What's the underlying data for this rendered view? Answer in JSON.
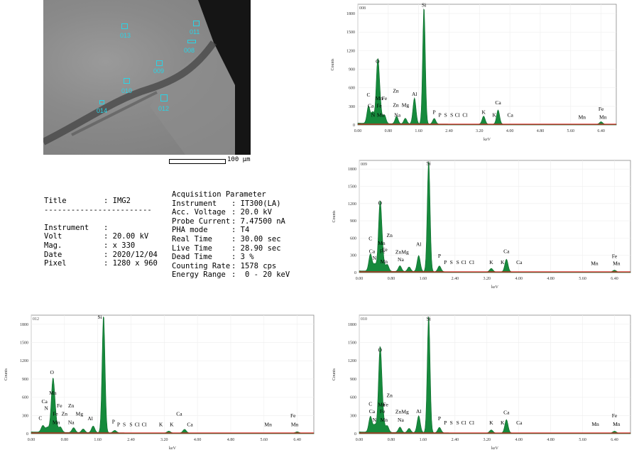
{
  "scale_label": "100 μm",
  "rois": [
    {
      "label": "011"
    },
    {
      "label": "008"
    },
    {
      "label": "013"
    },
    {
      "label": "009"
    },
    {
      "label": "010"
    },
    {
      "label": "012"
    },
    {
      "label": "014"
    }
  ],
  "info": {
    "title_key": "Title",
    "title_val": ": IMG2",
    "divider": "------------------------",
    "instrument_key": "Instrument",
    "instrument_val": ":",
    "volt_key": "Volt",
    "volt_val": ": 20.00 kV",
    "mag_key": "Mag.",
    "mag_val": ": x 330",
    "date_key": "Date",
    "date_val": ": 2020/12/04",
    "pixel_key": "Pixel",
    "pixel_val": ": 1280 x 960"
  },
  "acq": {
    "heading": "Acquisition Parameter",
    "rows": [
      {
        "k": "Instrument",
        "v": ": IT300(LA)"
      },
      {
        "k": "Acc. Voltage",
        "v": ": 20.0 kV"
      },
      {
        "k": "Probe Current",
        "v": ": 7.47500 nA"
      },
      {
        "k": "PHA mode",
        "v": ": T4"
      },
      {
        "k": "Real Time",
        "v": ": 30.00 sec"
      },
      {
        "k": "Live Time",
        "v": ": 28.90 sec"
      },
      {
        "k": "Dead Time",
        "v": ": 3 %"
      },
      {
        "k": "Counting Rate",
        "v": ": 1578 cps"
      },
      {
        "k": "Energy Range",
        "v": ":  0 - 20 keV"
      }
    ]
  },
  "chart_data": [
    {
      "type": "line",
      "id": "008",
      "xlabel": "keV",
      "ylabel": "Counts",
      "xlim": [
        0,
        6.8
      ],
      "ylim": [
        0,
        1950
      ],
      "xticks": [
        "0.00",
        "0.80",
        "1.60",
        "2.40",
        "3.20",
        "4.00",
        "4.80",
        "5.60",
        "6.40"
      ],
      "yticks": [
        "0",
        "300",
        "600",
        "900",
        "1200",
        "1500",
        "1800"
      ],
      "peaks": [
        {
          "x": 0.28,
          "y": 280
        },
        {
          "x": 0.39,
          "y": 180
        },
        {
          "x": 0.52,
          "y": 950
        },
        {
          "x": 0.58,
          "y": 300
        },
        {
          "x": 0.7,
          "y": 140
        },
        {
          "x": 1.02,
          "y": 120
        },
        {
          "x": 1.25,
          "y": 90
        },
        {
          "x": 1.49,
          "y": 420
        },
        {
          "x": 1.74,
          "y": 1900
        },
        {
          "x": 2.01,
          "y": 90
        },
        {
          "x": 3.31,
          "y": 130
        },
        {
          "x": 3.69,
          "y": 230
        },
        {
          "x": 6.4,
          "y": 40
        }
      ],
      "labels": [
        {
          "t": "Si",
          "x": 1.74,
          "y": 1910
        },
        {
          "t": "O",
          "x": 0.52,
          "y": 1000
        },
        {
          "t": "Zn",
          "x": 1.0,
          "y": 520
        },
        {
          "t": "Al",
          "x": 1.49,
          "y": 470
        },
        {
          "t": "C",
          "x": 0.28,
          "y": 460
        },
        {
          "t": "Mn",
          "x": 0.56,
          "y": 400
        },
        {
          "t": "Fe",
          "x": 0.7,
          "y": 400
        },
        {
          "t": "Ca",
          "x": 0.34,
          "y": 280
        },
        {
          "t": "Fe",
          "x": 0.56,
          "y": 280
        },
        {
          "t": "Zn",
          "x": 1.0,
          "y": 290
        },
        {
          "t": "Mg",
          "x": 1.25,
          "y": 290
        },
        {
          "t": "Ca",
          "x": 3.69,
          "y": 330
        },
        {
          "t": "N",
          "x": 0.4,
          "y": 130
        },
        {
          "t": "Mn",
          "x": 0.6,
          "y": 130
        },
        {
          "t": "Na",
          "x": 1.04,
          "y": 130
        },
        {
          "t": "P",
          "x": 2.01,
          "y": 180
        },
        {
          "t": "P",
          "x": 2.16,
          "y": 130
        },
        {
          "t": "S",
          "x": 2.31,
          "y": 130
        },
        {
          "t": "S",
          "x": 2.47,
          "y": 130
        },
        {
          "t": "Cl",
          "x": 2.62,
          "y": 130
        },
        {
          "t": "Cl",
          "x": 2.82,
          "y": 130
        },
        {
          "t": "K",
          "x": 3.31,
          "y": 180
        },
        {
          "t": "K",
          "x": 3.59,
          "y": 130
        },
        {
          "t": "Ca",
          "x": 4.01,
          "y": 130
        },
        {
          "t": "Mn",
          "x": 5.9,
          "y": 100
        },
        {
          "t": "Fe",
          "x": 6.4,
          "y": 230
        },
        {
          "t": "Mn",
          "x": 6.45,
          "y": 100
        }
      ]
    },
    {
      "type": "line",
      "id": "009",
      "xlabel": "keV",
      "ylabel": "Counts",
      "xlim": [
        0,
        6.8
      ],
      "ylim": [
        0,
        1950
      ],
      "xticks": [
        "0.00",
        "0.80",
        "1.60",
        "2.40",
        "3.20",
        "4.00",
        "4.80",
        "5.60",
        "6.40"
      ],
      "yticks": [
        "0",
        "300",
        "600",
        "900",
        "1200",
        "1500",
        "1800"
      ],
      "peaks": [
        {
          "x": 0.28,
          "y": 300
        },
        {
          "x": 0.39,
          "y": 120
        },
        {
          "x": 0.52,
          "y": 1150
        },
        {
          "x": 0.58,
          "y": 250
        },
        {
          "x": 0.7,
          "y": 120
        },
        {
          "x": 1.02,
          "y": 100
        },
        {
          "x": 1.25,
          "y": 80
        },
        {
          "x": 1.49,
          "y": 280
        },
        {
          "x": 1.74,
          "y": 1950
        },
        {
          "x": 2.01,
          "y": 100
        },
        {
          "x": 3.31,
          "y": 60
        },
        {
          "x": 3.69,
          "y": 220
        },
        {
          "x": 6.4,
          "y": 30
        }
      ],
      "labels": [
        {
          "t": "Si",
          "x": 1.74,
          "y": 1870
        },
        {
          "t": "O",
          "x": 0.52,
          "y": 1180
        },
        {
          "t": "Zn",
          "x": 0.76,
          "y": 620
        },
        {
          "t": "C",
          "x": 0.28,
          "y": 560
        },
        {
          "t": "Mn",
          "x": 0.56,
          "y": 480
        },
        {
          "t": "Fe",
          "x": 0.64,
          "y": 370
        },
        {
          "t": "Ca",
          "x": 0.32,
          "y": 340
        },
        {
          "t": "Fe",
          "x": 0.58,
          "y": 340
        },
        {
          "t": "Zn",
          "x": 0.98,
          "y": 330
        },
        {
          "t": "Mg",
          "x": 1.15,
          "y": 330
        },
        {
          "t": "Al",
          "x": 1.49,
          "y": 460
        },
        {
          "t": "N",
          "x": 0.38,
          "y": 220
        },
        {
          "t": "Mn",
          "x": 0.62,
          "y": 160
        },
        {
          "t": "Na",
          "x": 1.04,
          "y": 200
        },
        {
          "t": "P",
          "x": 2.01,
          "y": 260
        },
        {
          "t": "P",
          "x": 2.16,
          "y": 150
        },
        {
          "t": "S",
          "x": 2.31,
          "y": 150
        },
        {
          "t": "S",
          "x": 2.47,
          "y": 150
        },
        {
          "t": "Cl",
          "x": 2.62,
          "y": 150
        },
        {
          "t": "Cl",
          "x": 2.82,
          "y": 150
        },
        {
          "t": "K",
          "x": 3.31,
          "y": 150
        },
        {
          "t": "K",
          "x": 3.59,
          "y": 150
        },
        {
          "t": "Ca",
          "x": 3.69,
          "y": 340
        },
        {
          "t": "Ca",
          "x": 4.01,
          "y": 150
        },
        {
          "t": "Mn",
          "x": 5.9,
          "y": 130
        },
        {
          "t": "Fe",
          "x": 6.4,
          "y": 250
        },
        {
          "t": "Mn",
          "x": 6.45,
          "y": 130
        }
      ]
    },
    {
      "type": "line",
      "id": "012",
      "xlabel": "keV",
      "ylabel": "Counts",
      "xlim": [
        0,
        6.8
      ],
      "ylim": [
        0,
        1950
      ],
      "xticks": [
        "0.00",
        "0.80",
        "1.60",
        "2.40",
        "3.20",
        "4.00",
        "4.80",
        "5.60",
        "6.40"
      ],
      "yticks": [
        "0",
        "300",
        "600",
        "900",
        "1200",
        "1500",
        "1800"
      ],
      "peaks": [
        {
          "x": 0.28,
          "y": 110
        },
        {
          "x": 0.39,
          "y": 80
        },
        {
          "x": 0.52,
          "y": 830
        },
        {
          "x": 0.58,
          "y": 200
        },
        {
          "x": 0.7,
          "y": 90
        },
        {
          "x": 1.02,
          "y": 80
        },
        {
          "x": 1.25,
          "y": 60
        },
        {
          "x": 1.49,
          "y": 110
        },
        {
          "x": 1.74,
          "y": 1950
        },
        {
          "x": 2.01,
          "y": 40
        },
        {
          "x": 3.31,
          "y": 30
        },
        {
          "x": 3.69,
          "y": 60
        },
        {
          "x": 6.4,
          "y": 20
        }
      ],
      "labels": [
        {
          "t": "Si",
          "x": 1.65,
          "y": 1890
        },
        {
          "t": "O",
          "x": 0.5,
          "y": 980
        },
        {
          "t": "Mn",
          "x": 0.52,
          "y": 640
        },
        {
          "t": "Ca",
          "x": 0.32,
          "y": 500
        },
        {
          "t": "Fe",
          "x": 0.68,
          "y": 430
        },
        {
          "t": "Zn",
          "x": 0.96,
          "y": 430
        },
        {
          "t": "N",
          "x": 0.36,
          "y": 390
        },
        {
          "t": "Fe",
          "x": 0.58,
          "y": 300
        },
        {
          "t": "Zn",
          "x": 0.8,
          "y": 300
        },
        {
          "t": "Mg",
          "x": 1.16,
          "y": 300
        },
        {
          "t": "Na",
          "x": 0.96,
          "y": 160
        },
        {
          "t": "Al",
          "x": 1.42,
          "y": 220
        },
        {
          "t": "C",
          "x": 0.22,
          "y": 230
        },
        {
          "t": "Mn",
          "x": 0.6,
          "y": 160
        },
        {
          "t": "P",
          "x": 1.98,
          "y": 170
        },
        {
          "t": "P",
          "x": 2.1,
          "y": 120
        },
        {
          "t": "S",
          "x": 2.24,
          "y": 120
        },
        {
          "t": "S",
          "x": 2.4,
          "y": 120
        },
        {
          "t": "Cl",
          "x": 2.55,
          "y": 120
        },
        {
          "t": "Cl",
          "x": 2.72,
          "y": 120
        },
        {
          "t": "K",
          "x": 3.12,
          "y": 120
        },
        {
          "t": "K",
          "x": 3.38,
          "y": 120
        },
        {
          "t": "Ca",
          "x": 3.56,
          "y": 300
        },
        {
          "t": "Ca",
          "x": 3.82,
          "y": 120
        },
        {
          "t": "Mn",
          "x": 5.7,
          "y": 120
        },
        {
          "t": "Fe",
          "x": 6.3,
          "y": 270
        },
        {
          "t": "Mn",
          "x": 6.34,
          "y": 120
        }
      ]
    },
    {
      "type": "line",
      "id": "010",
      "xlabel": "keV",
      "ylabel": "Counts",
      "xlim": [
        0,
        6.8
      ],
      "ylim": [
        0,
        1950
      ],
      "xticks": [
        "0.00",
        "0.80",
        "1.60",
        "2.40",
        "3.20",
        "4.00",
        "4.80",
        "5.60",
        "6.40"
      ],
      "yticks": [
        "0",
        "300",
        "600",
        "900",
        "1200",
        "1500",
        "1800"
      ],
      "peaks": [
        {
          "x": 0.28,
          "y": 260
        },
        {
          "x": 0.39,
          "y": 120
        },
        {
          "x": 0.52,
          "y": 1320
        },
        {
          "x": 0.58,
          "y": 300
        },
        {
          "x": 0.7,
          "y": 110
        },
        {
          "x": 1.02,
          "y": 90
        },
        {
          "x": 1.25,
          "y": 70
        },
        {
          "x": 1.49,
          "y": 280
        },
        {
          "x": 1.74,
          "y": 1950
        },
        {
          "x": 2.01,
          "y": 90
        },
        {
          "x": 3.31,
          "y": 50
        },
        {
          "x": 3.69,
          "y": 220
        },
        {
          "x": 6.4,
          "y": 30
        }
      ],
      "labels": [
        {
          "t": "Si",
          "x": 1.74,
          "y": 1860
        },
        {
          "t": "O",
          "x": 0.52,
          "y": 1350
        },
        {
          "t": "Zn",
          "x": 0.76,
          "y": 600
        },
        {
          "t": "C",
          "x": 0.28,
          "y": 460
        },
        {
          "t": "Mn",
          "x": 0.56,
          "y": 450
        },
        {
          "t": "Fe",
          "x": 0.66,
          "y": 450
        },
        {
          "t": "Ca",
          "x": 0.32,
          "y": 340
        },
        {
          "t": "Fe",
          "x": 0.58,
          "y": 340
        },
        {
          "t": "Zn",
          "x": 0.98,
          "y": 330
        },
        {
          "t": "Mg",
          "x": 1.15,
          "y": 330
        },
        {
          "t": "Al",
          "x": 1.49,
          "y": 340
        },
        {
          "t": "N",
          "x": 0.38,
          "y": 200
        },
        {
          "t": "Mn",
          "x": 0.62,
          "y": 200
        },
        {
          "t": "Na",
          "x": 1.04,
          "y": 200
        },
        {
          "t": "P",
          "x": 2.01,
          "y": 220
        },
        {
          "t": "P",
          "x": 2.16,
          "y": 150
        },
        {
          "t": "S",
          "x": 2.31,
          "y": 150
        },
        {
          "t": "S",
          "x": 2.47,
          "y": 150
        },
        {
          "t": "Cl",
          "x": 2.62,
          "y": 150
        },
        {
          "t": "Cl",
          "x": 2.82,
          "y": 150
        },
        {
          "t": "K",
          "x": 3.31,
          "y": 150
        },
        {
          "t": "K",
          "x": 3.59,
          "y": 150
        },
        {
          "t": "Ca",
          "x": 3.69,
          "y": 320
        },
        {
          "t": "Ca",
          "x": 4.01,
          "y": 150
        },
        {
          "t": "Mn",
          "x": 5.92,
          "y": 130
        },
        {
          "t": "Fe",
          "x": 6.4,
          "y": 270
        },
        {
          "t": "Mn",
          "x": 6.45,
          "y": 130
        }
      ]
    }
  ]
}
